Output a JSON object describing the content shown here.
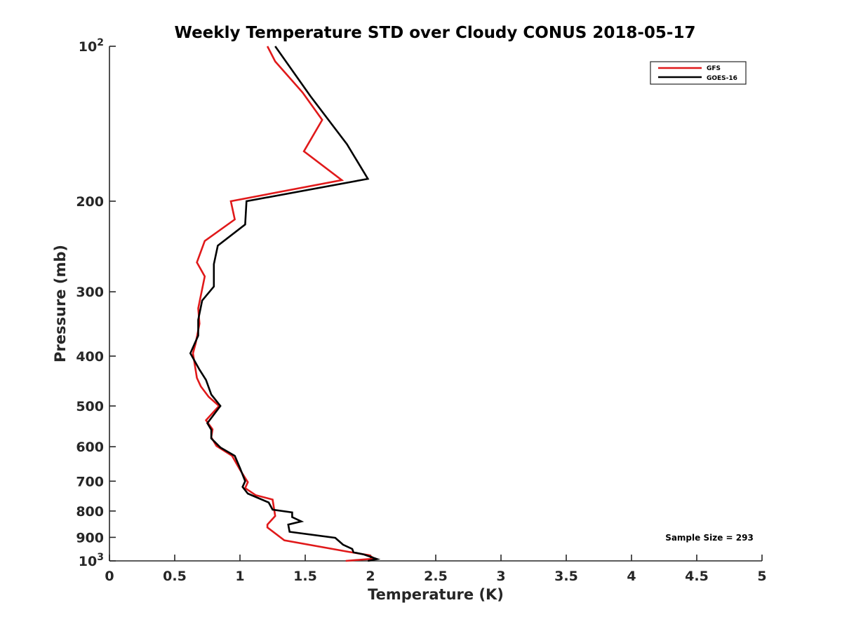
{
  "chart_data": {
    "type": "line",
    "title": "Weekly Temperature STD over Cloudy CONUS 2018-05-17",
    "xlabel": "Temperature (K)",
    "ylabel": "Pressure (mb)",
    "xlim": [
      0,
      5
    ],
    "ylim": [
      100,
      1000
    ],
    "y_scale": "log",
    "y_reversed": true,
    "grid": false,
    "legend_position": "top-right",
    "x_ticks": [
      "0",
      "0.5",
      "1",
      "1.5",
      "2",
      "2.5",
      "3",
      "3.5",
      "4",
      "4.5",
      "5"
    ],
    "y_ticks": [
      {
        "value": 100,
        "base": "10",
        "exp": "2"
      },
      {
        "value": 200,
        "label": "200"
      },
      {
        "value": 300,
        "label": "300"
      },
      {
        "value": 400,
        "label": "400"
      },
      {
        "value": 500,
        "label": "500"
      },
      {
        "value": 600,
        "label": "600"
      },
      {
        "value": 700,
        "label": "700"
      },
      {
        "value": 800,
        "label": "800"
      },
      {
        "value": 900,
        "label": "900"
      },
      {
        "value": 1000,
        "base": "10",
        "exp": "3"
      }
    ],
    "annotation": "Sample Size = 293",
    "series": [
      {
        "name": "GFS",
        "color": "#e0191a",
        "points": [
          [
            1.21,
            100
          ],
          [
            1.27,
            107
          ],
          [
            1.48,
            123
          ],
          [
            1.63,
            139
          ],
          [
            1.49,
            160
          ],
          [
            1.78,
            182
          ],
          [
            0.93,
            200
          ],
          [
            0.96,
            217
          ],
          [
            0.73,
            239
          ],
          [
            0.67,
            263
          ],
          [
            0.73,
            280
          ],
          [
            0.68,
            323
          ],
          [
            0.69,
            346
          ],
          [
            0.66,
            378
          ],
          [
            0.64,
            395
          ],
          [
            0.67,
            441
          ],
          [
            0.7,
            458
          ],
          [
            0.76,
            480
          ],
          [
            0.84,
            500
          ],
          [
            0.74,
            533
          ],
          [
            0.79,
            555
          ],
          [
            0.78,
            575
          ],
          [
            0.82,
            598
          ],
          [
            0.94,
            625
          ],
          [
            1.0,
            665
          ],
          [
            1.06,
            703
          ],
          [
            1.04,
            722
          ],
          [
            1.12,
            745
          ],
          [
            1.25,
            760
          ],
          [
            1.27,
            818
          ],
          [
            1.21,
            850
          ],
          [
            1.21,
            861
          ],
          [
            1.34,
            912
          ],
          [
            1.83,
            960
          ],
          [
            1.99,
            975
          ],
          [
            2.03,
            990
          ],
          [
            1.81,
            1000
          ]
        ]
      },
      {
        "name": "GOES-16",
        "color": "#000000",
        "points": [
          [
            1.27,
            100
          ],
          [
            1.54,
            125
          ],
          [
            1.82,
            155
          ],
          [
            1.98,
            181
          ],
          [
            1.05,
            200
          ],
          [
            1.04,
            222
          ],
          [
            0.83,
            244
          ],
          [
            0.8,
            265
          ],
          [
            0.8,
            278
          ],
          [
            0.8,
            293
          ],
          [
            0.71,
            312
          ],
          [
            0.68,
            340
          ],
          [
            0.68,
            365
          ],
          [
            0.62,
            395
          ],
          [
            0.69,
            425
          ],
          [
            0.74,
            445
          ],
          [
            0.78,
            475
          ],
          [
            0.85,
            500
          ],
          [
            0.75,
            540
          ],
          [
            0.78,
            556
          ],
          [
            0.78,
            578
          ],
          [
            0.85,
            602
          ],
          [
            0.96,
            625
          ],
          [
            1.0,
            660
          ],
          [
            1.04,
            700
          ],
          [
            1.02,
            718
          ],
          [
            1.06,
            740
          ],
          [
            1.22,
            770
          ],
          [
            1.25,
            795
          ],
          [
            1.4,
            805
          ],
          [
            1.4,
            822
          ],
          [
            1.47,
            838
          ],
          [
            1.37,
            850
          ],
          [
            1.38,
            878
          ],
          [
            1.73,
            902
          ],
          [
            1.79,
            930
          ],
          [
            1.86,
            948
          ],
          [
            1.87,
            962
          ],
          [
            1.95,
            972
          ],
          [
            2.05,
            992
          ],
          [
            1.98,
            1000
          ]
        ]
      }
    ]
  }
}
